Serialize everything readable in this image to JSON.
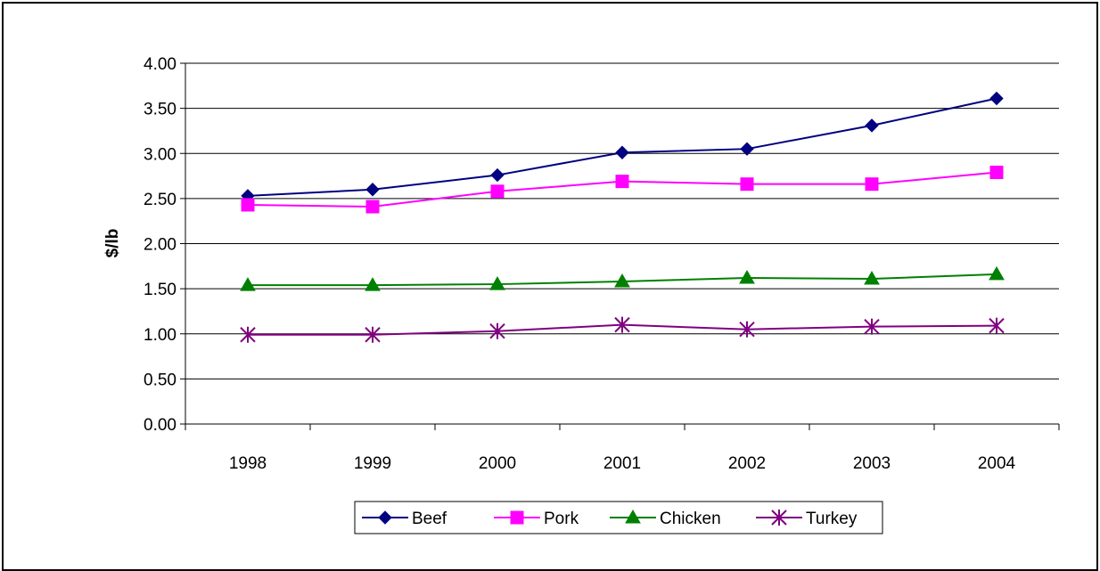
{
  "chart_data": {
    "type": "line",
    "title": "",
    "xlabel": "",
    "ylabel": "$/lb",
    "categories": [
      "1998",
      "1999",
      "2000",
      "2001",
      "2002",
      "2003",
      "2004"
    ],
    "ylim": [
      0,
      4
    ],
    "yticks": [
      "0.00",
      "0.50",
      "1.00",
      "1.50",
      "2.00",
      "2.50",
      "3.00",
      "3.50",
      "4.00"
    ],
    "grid": true,
    "legend_position": "bottom",
    "series": [
      {
        "name": "Beef",
        "color": "#000080",
        "marker": "diamond",
        "values": [
          2.53,
          2.6,
          2.76,
          3.01,
          3.05,
          3.31,
          3.61
        ]
      },
      {
        "name": "Pork",
        "color": "#FF00FF",
        "marker": "square",
        "values": [
          2.43,
          2.41,
          2.58,
          2.69,
          2.66,
          2.66,
          2.79
        ]
      },
      {
        "name": "Chicken",
        "color": "#008000",
        "marker": "triangle",
        "values": [
          1.54,
          1.54,
          1.55,
          1.58,
          1.62,
          1.61,
          1.66
        ]
      },
      {
        "name": "Turkey",
        "color": "#800080",
        "marker": "star",
        "values": [
          0.99,
          0.99,
          1.03,
          1.1,
          1.05,
          1.08,
          1.09
        ]
      }
    ]
  }
}
